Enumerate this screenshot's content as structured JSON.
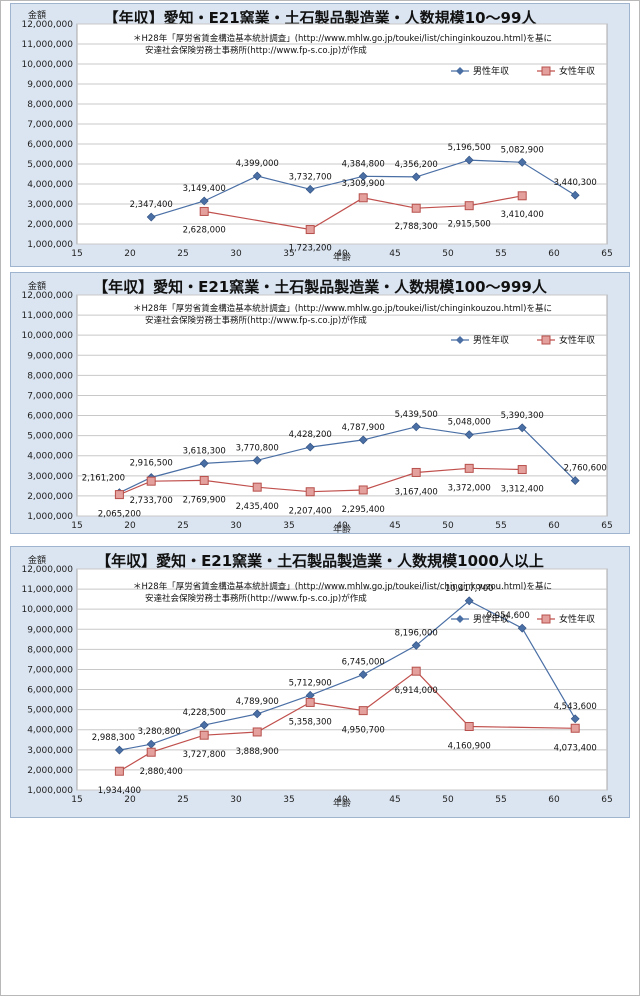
{
  "chart_data": [
    {
      "type": "line",
      "title": "【年収】愛知・E21窯業・土石製品製造業・人数規模10～99人",
      "ylabel": "金額",
      "xlabel": "年齢",
      "note_line1": "＊H28年「厚労省賃金構造基本統計調査」(http://www.mhlw.go.jp/toukei/list/chinginkouzou.html)を基に",
      "note_line2": "安達社会保険労務士事務所(http://www.fp-s.co.jp)が作成",
      "xlim": [
        15,
        65
      ],
      "xticks": [
        15,
        20,
        25,
        30,
        35,
        40,
        45,
        50,
        55,
        60,
        65
      ],
      "ylim": [
        1000000,
        12000000
      ],
      "yticks": [
        "1,000,000",
        "2,000,000",
        "3,000,000",
        "4,000,000",
        "5,000,000",
        "6,000,000",
        "7,000,000",
        "8,000,000",
        "9,000,000",
        "10,000,000",
        "11,000,000",
        "12,000,000"
      ],
      "grid": true,
      "legend_position": "top-right",
      "series": [
        {
          "name": "男性年収",
          "color": "#4a6fa5",
          "marker": "diamond",
          "x": [
            22,
            27,
            32,
            37,
            42,
            47,
            52,
            57,
            62
          ],
          "y": [
            2347400,
            3149400,
            4399000,
            3732700,
            4384800,
            4356200,
            5196500,
            5082900,
            3440300
          ],
          "labels": [
            "2,347,400",
            "3,149,400",
            "4,399,000",
            "3,732,700",
            "4,384,800",
            "4,356,200",
            "5,196,500",
            "5,082,900",
            "3,440,300"
          ]
        },
        {
          "name": "女性年収",
          "color": "#c0504d",
          "marker": "square",
          "x": [
            27,
            37,
            42,
            47,
            52,
            57
          ],
          "y": [
            2628000,
            1723200,
            3309900,
            2788300,
            2915500,
            3410400
          ],
          "labels": [
            "2,628,000",
            "1,723,200",
            "3,309,900",
            "2,788,300",
            "2,915,500",
            "3,410,400"
          ]
        }
      ]
    },
    {
      "type": "line",
      "title": "【年収】愛知・E21窯業・土石製品製造業・人数規模100～999人",
      "ylabel": "金額",
      "xlabel": "年齢",
      "note_line1": "＊H28年「厚労省賃金構造基本統計調査」(http://www.mhlw.go.jp/toukei/list/chinginkouzou.html)を基に",
      "note_line2": "安達社会保険労務士事務所(http://www.fp-s.co.jp)が作成",
      "xlim": [
        15,
        65
      ],
      "xticks": [
        15,
        20,
        25,
        30,
        35,
        40,
        45,
        50,
        55,
        60,
        65
      ],
      "ylim": [
        1000000,
        12000000
      ],
      "yticks": [
        "1,000,000",
        "2,000,000",
        "3,000,000",
        "4,000,000",
        "5,000,000",
        "6,000,000",
        "7,000,000",
        "8,000,000",
        "9,000,000",
        "10,000,000",
        "11,000,000",
        "12,000,000"
      ],
      "grid": true,
      "legend_position": "top-right",
      "series": [
        {
          "name": "男性年収",
          "color": "#4a6fa5",
          "marker": "diamond",
          "x": [
            19,
            22,
            27,
            32,
            37,
            42,
            47,
            52,
            57,
            62
          ],
          "y": [
            2161200,
            2916500,
            3618300,
            3770800,
            4428200,
            4787900,
            5439500,
            5048000,
            5390300,
            2760600
          ],
          "labels": [
            "2,161,200",
            "2,916,500",
            "3,618,300",
            "3,770,800",
            "4,428,200",
            "4,787,900",
            "5,439,500",
            "5,048,000",
            "5,390,300",
            "2,760,600"
          ]
        },
        {
          "name": "女性年収",
          "color": "#c0504d",
          "marker": "square",
          "x": [
            19,
            22,
            27,
            32,
            37,
            42,
            47,
            52,
            57
          ],
          "y": [
            2065200,
            2733700,
            2769900,
            2435400,
            2207400,
            2295400,
            3167400,
            3372000,
            3312400
          ],
          "labels": [
            "2,065,200",
            "2,733,700",
            "2,769,900",
            "2,435,400",
            "2,207,400",
            "2,295,400",
            "3,167,400",
            "3,372,000",
            "3,312,400"
          ]
        }
      ]
    },
    {
      "type": "line",
      "title": "【年収】愛知・E21窯業・土石製品製造業・人数規模1000人以上",
      "ylabel": "金額",
      "xlabel": "年齢",
      "note_line1": "＊H28年「厚労省賃金構造基本統計調査」(http://www.mhlw.go.jp/toukei/list/chinginkouzou.html)を基に",
      "note_line2": "安達社会保険労務士事務所(http://www.fp-s.co.jp)が作成",
      "xlim": [
        15,
        65
      ],
      "xticks": [
        15,
        20,
        25,
        30,
        35,
        40,
        45,
        50,
        55,
        60,
        65
      ],
      "ylim": [
        1000000,
        12000000
      ],
      "yticks": [
        "1,000,000",
        "2,000,000",
        "3,000,000",
        "4,000,000",
        "5,000,000",
        "6,000,000",
        "7,000,000",
        "8,000,000",
        "9,000,000",
        "10,000,000",
        "11,000,000",
        "12,000,000"
      ],
      "grid": true,
      "legend_position": "top-right",
      "series": [
        {
          "name": "男性年収",
          "color": "#4a6fa5",
          "marker": "diamond",
          "x": [
            19,
            22,
            27,
            32,
            37,
            42,
            47,
            52,
            57,
            62
          ],
          "y": [
            2988300,
            3280800,
            4228500,
            4789900,
            5712900,
            6745000,
            8196000,
            10417700,
            9054600,
            4543600
          ],
          "labels": [
            "2,988,300",
            "3,280,800",
            "4,228,500",
            "4,789,900",
            "5,712,900",
            "6,745,000",
            "8,196,000",
            "10,417,700",
            "9,054,600",
            "4,543,600"
          ]
        },
        {
          "name": "女性年収",
          "color": "#c0504d",
          "marker": "square",
          "x": [
            19,
            22,
            27,
            32,
            37,
            42,
            47,
            52,
            62
          ],
          "y": [
            1934400,
            2880400,
            3727800,
            3888900,
            5358300,
            4950700,
            6914000,
            4160900,
            4073400
          ],
          "labels": [
            "1,934,400",
            "2,880,400",
            "3,727,800",
            "3,888,900",
            "5,358,300",
            "4,950,700",
            "6,914,000",
            "4,160,900",
            "4,073,400"
          ]
        }
      ]
    }
  ]
}
